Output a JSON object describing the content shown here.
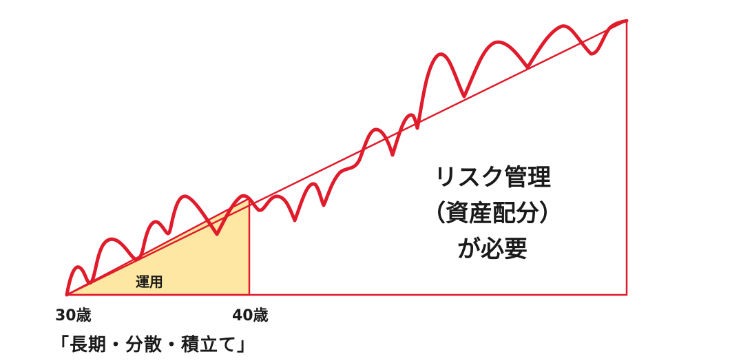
{
  "labels": {
    "age_start": "30歳",
    "age_end": "40歳",
    "strategy": "「長期・分散・積立て」",
    "invest_region": "運用",
    "risk_lines": [
      "リスク管理",
      "（資産配分）",
      "が必要"
    ]
  },
  "colors": {
    "accent_red": "#e01b2b",
    "invest_fill": "#fde7a3",
    "text": "#1a1a1a"
  }
}
